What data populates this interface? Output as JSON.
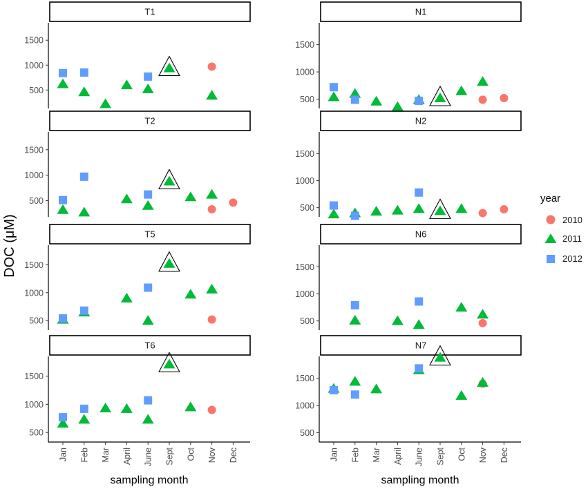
{
  "chart_data": {
    "type": "scatter",
    "ylabel": "DOC (μM)",
    "xlabel": "sampling month",
    "months": [
      "Jan",
      "Feb",
      "Mar",
      "April",
      "June",
      "Sept",
      "Oct",
      "Nov",
      "Dec"
    ],
    "legend": {
      "title": "year",
      "entries": [
        {
          "label": "2010",
          "shape": "circle",
          "color": "#F8766D"
        },
        {
          "label": "2011",
          "shape": "triangle",
          "color": "#00BA38"
        },
        {
          "label": "2012",
          "shape": "square",
          "color": "#619CFF"
        }
      ]
    },
    "panels": [
      {
        "name": "T1",
        "ylim": [
          130,
          1850
        ],
        "yticks": [
          500,
          1000,
          1500
        ],
        "highlight": {
          "month": "Sept",
          "value": 940
        },
        "points": [
          {
            "year": "2012",
            "month": "Jan",
            "value": 840
          },
          {
            "year": "2011",
            "month": "Jan",
            "value": 620
          },
          {
            "year": "2012",
            "month": "Feb",
            "value": 850
          },
          {
            "year": "2011",
            "month": "Feb",
            "value": 460
          },
          {
            "year": "2011",
            "month": "Mar",
            "value": 220
          },
          {
            "year": "2011",
            "month": "April",
            "value": 600
          },
          {
            "year": "2012",
            "month": "June",
            "value": 770
          },
          {
            "year": "2011",
            "month": "June",
            "value": 520
          },
          {
            "year": "2011",
            "month": "Sept",
            "value": 940
          },
          {
            "year": "2010",
            "month": "Nov",
            "value": 970
          },
          {
            "year": "2011",
            "month": "Nov",
            "value": 390
          }
        ]
      },
      {
        "name": "N1",
        "ylim": [
          330,
          1900
        ],
        "yticks": [
          500,
          1000,
          1500
        ],
        "highlight": {
          "month": "Sept",
          "value": 520
        },
        "points": [
          {
            "year": "2012",
            "month": "Jan",
            "value": 720
          },
          {
            "year": "2011",
            "month": "Jan",
            "value": 540
          },
          {
            "year": "2012",
            "month": "Feb",
            "value": 490
          },
          {
            "year": "2011",
            "month": "Feb",
            "value": 600
          },
          {
            "year": "2011",
            "month": "Mar",
            "value": 460
          },
          {
            "year": "2011",
            "month": "April",
            "value": 360
          },
          {
            "year": "2012",
            "month": "June",
            "value": 470
          },
          {
            "year": "2011",
            "month": "June",
            "value": 490
          },
          {
            "year": "2011",
            "month": "Sept",
            "value": 520
          },
          {
            "year": "2011",
            "month": "Oct",
            "value": 650
          },
          {
            "year": "2010",
            "month": "Nov",
            "value": 490
          },
          {
            "year": "2011",
            "month": "Nov",
            "value": 820
          },
          {
            "year": "2010",
            "month": "Dec",
            "value": 520
          }
        ]
      },
      {
        "name": "T2",
        "ylim": [
          180,
          1850
        ],
        "yticks": [
          500,
          1000,
          1500
        ],
        "highlight": {
          "month": "Sept",
          "value": 880
        },
        "points": [
          {
            "year": "2012",
            "month": "Jan",
            "value": 510
          },
          {
            "year": "2011",
            "month": "Jan",
            "value": 320
          },
          {
            "year": "2012",
            "month": "Feb",
            "value": 970
          },
          {
            "year": "2011",
            "month": "Feb",
            "value": 270
          },
          {
            "year": "2011",
            "month": "April",
            "value": 530
          },
          {
            "year": "2012",
            "month": "June",
            "value": 620
          },
          {
            "year": "2011",
            "month": "June",
            "value": 400
          },
          {
            "year": "2011",
            "month": "Sept",
            "value": 880
          },
          {
            "year": "2011",
            "month": "Oct",
            "value": 570
          },
          {
            "year": "2010",
            "month": "Nov",
            "value": 330
          },
          {
            "year": "2011",
            "month": "Nov",
            "value": 620
          },
          {
            "year": "2010",
            "month": "Dec",
            "value": 460
          }
        ]
      },
      {
        "name": "N2",
        "ylim": [
          330,
          1900
        ],
        "yticks": [
          500,
          1000,
          1500
        ],
        "highlight": {
          "month": "Sept",
          "value": 440
        },
        "points": [
          {
            "year": "2012",
            "month": "Jan",
            "value": 540
          },
          {
            "year": "2011",
            "month": "Jan",
            "value": 380
          },
          {
            "year": "2012",
            "month": "Feb",
            "value": 350
          },
          {
            "year": "2011",
            "month": "Feb",
            "value": 400
          },
          {
            "year": "2011",
            "month": "Mar",
            "value": 430
          },
          {
            "year": "2011",
            "month": "April",
            "value": 450
          },
          {
            "year": "2012",
            "month": "June",
            "value": 780
          },
          {
            "year": "2011",
            "month": "June",
            "value": 480
          },
          {
            "year": "2011",
            "month": "Sept",
            "value": 440
          },
          {
            "year": "2011",
            "month": "Oct",
            "value": 480
          },
          {
            "year": "2010",
            "month": "Nov",
            "value": 400
          },
          {
            "year": "2010",
            "month": "Dec",
            "value": 470
          }
        ]
      },
      {
        "name": "T5",
        "ylim": [
          330,
          1850
        ],
        "yticks": [
          500,
          1000,
          1500
        ],
        "highlight": {
          "month": "Sept",
          "value": 1520
        },
        "points": [
          {
            "year": "2012",
            "month": "Jan",
            "value": 540
          },
          {
            "year": "2011",
            "month": "Jan",
            "value": 520
          },
          {
            "year": "2012",
            "month": "Feb",
            "value": 680
          },
          {
            "year": "2011",
            "month": "Feb",
            "value": 650
          },
          {
            "year": "2011",
            "month": "April",
            "value": 900
          },
          {
            "year": "2012",
            "month": "June",
            "value": 1090
          },
          {
            "year": "2011",
            "month": "June",
            "value": 500
          },
          {
            "year": "2011",
            "month": "Sept",
            "value": 1520
          },
          {
            "year": "2011",
            "month": "Oct",
            "value": 970
          },
          {
            "year": "2010",
            "month": "Nov",
            "value": 520
          },
          {
            "year": "2011",
            "month": "Nov",
            "value": 1060
          }
        ]
      },
      {
        "name": "N6",
        "ylim": [
          330,
          1900
        ],
        "yticks": [
          500,
          1000,
          1500
        ],
        "highlight": null,
        "points": [
          {
            "year": "2012",
            "month": "Feb",
            "value": 790
          },
          {
            "year": "2011",
            "month": "Feb",
            "value": 510
          },
          {
            "year": "2011",
            "month": "April",
            "value": 500
          },
          {
            "year": "2012",
            "month": "June",
            "value": 860
          },
          {
            "year": "2011",
            "month": "June",
            "value": 430
          },
          {
            "year": "2011",
            "month": "Oct",
            "value": 750
          },
          {
            "year": "2010",
            "month": "Nov",
            "value": 460
          },
          {
            "year": "2011",
            "month": "Nov",
            "value": 620
          }
        ]
      },
      {
        "name": "T6",
        "ylim": [
          330,
          1850
        ],
        "yticks": [
          500,
          1000,
          1500
        ],
        "highlight": {
          "month": "Sept",
          "value": 1710
        },
        "points": [
          {
            "year": "2012",
            "month": "Jan",
            "value": 770
          },
          {
            "year": "2011",
            "month": "Jan",
            "value": 660
          },
          {
            "year": "2012",
            "month": "Feb",
            "value": 920
          },
          {
            "year": "2011",
            "month": "Feb",
            "value": 730
          },
          {
            "year": "2011",
            "month": "Mar",
            "value": 930
          },
          {
            "year": "2011",
            "month": "April",
            "value": 920
          },
          {
            "year": "2012",
            "month": "June",
            "value": 1070
          },
          {
            "year": "2011",
            "month": "June",
            "value": 730
          },
          {
            "year": "2011",
            "month": "Sept",
            "value": 1710
          },
          {
            "year": "2011",
            "month": "Oct",
            "value": 950
          },
          {
            "year": "2010",
            "month": "Nov",
            "value": 900
          }
        ]
      },
      {
        "name": "N7",
        "ylim": [
          330,
          1900
        ],
        "yticks": [
          500,
          1000,
          1500
        ],
        "highlight": {
          "month": "Sept",
          "value": 1880
        },
        "points": [
          {
            "year": "2012",
            "month": "Jan",
            "value": 1280
          },
          {
            "year": "2011",
            "month": "Jan",
            "value": 1310
          },
          {
            "year": "2012",
            "month": "Feb",
            "value": 1200
          },
          {
            "year": "2011",
            "month": "Feb",
            "value": 1440
          },
          {
            "year": "2011",
            "month": "Mar",
            "value": 1300
          },
          {
            "year": "2012",
            "month": "June",
            "value": 1680
          },
          {
            "year": "2011",
            "month": "June",
            "value": 1650
          },
          {
            "year": "2011",
            "month": "Sept",
            "value": 1880
          },
          {
            "year": "2011",
            "month": "Oct",
            "value": 1180
          },
          {
            "year": "2010",
            "month": "Nov",
            "value": 1400
          },
          {
            "year": "2011",
            "month": "Nov",
            "value": 1420
          }
        ]
      }
    ]
  }
}
